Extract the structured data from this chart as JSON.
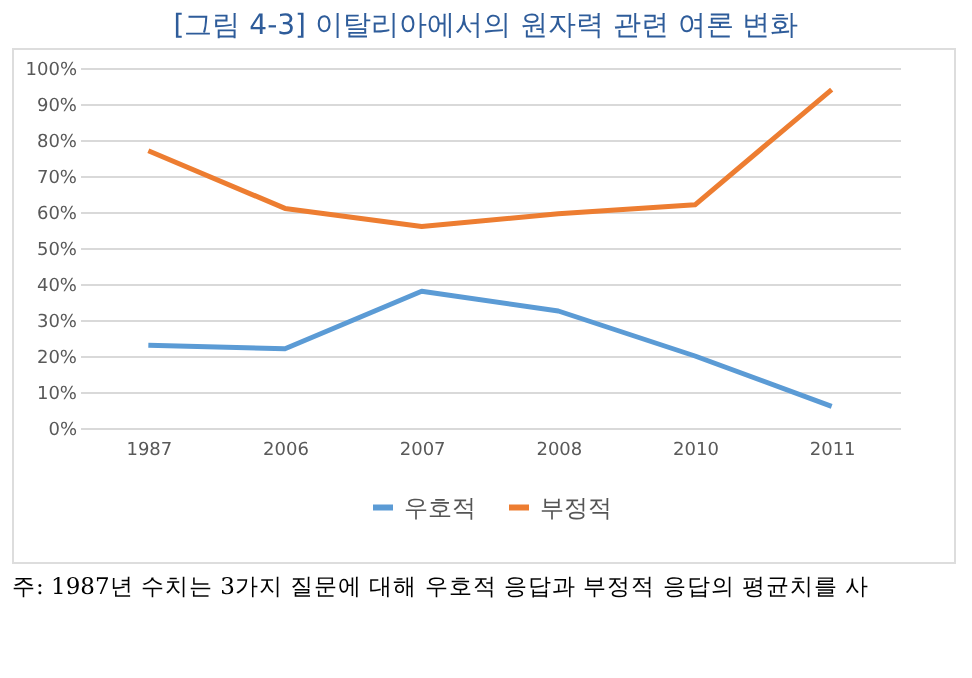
{
  "chart_data": {
    "type": "line",
    "title": "[그림 4-3] 이탈리아에서의 원자력 관련 여론 변화",
    "categories": [
      "1987",
      "2006",
      "2007",
      "2008",
      "2010",
      "2011"
    ],
    "series": [
      {
        "name": "우호적",
        "color": "#5b9bd5",
        "values": [
          23,
          22,
          38,
          32.5,
          20,
          6
        ]
      },
      {
        "name": "부정적",
        "color": "#ed7d31",
        "values": [
          77,
          61,
          56,
          59.5,
          62,
          94
        ]
      }
    ],
    "ylim": [
      0,
      100
    ],
    "yticks": [
      {
        "value": 0,
        "label": "0%"
      },
      {
        "value": 10,
        "label": "10%"
      },
      {
        "value": 20,
        "label": "20%"
      },
      {
        "value": 30,
        "label": "30%"
      },
      {
        "value": 40,
        "label": "40%"
      },
      {
        "value": 50,
        "label": "50%"
      },
      {
        "value": 60,
        "label": "60%"
      },
      {
        "value": 70,
        "label": "70%"
      },
      {
        "value": 80,
        "label": "80%"
      },
      {
        "value": 90,
        "label": "90%"
      },
      {
        "value": 100,
        "label": "100%"
      }
    ],
    "grid": "y",
    "legend": "bottom",
    "marker": "none",
    "line_style": "solid",
    "annotations": [
      "주: 1987년 수치는 3가지 질문에 대해 우호적 응답과 부정적 응답의 평균치를 사"
    ]
  }
}
